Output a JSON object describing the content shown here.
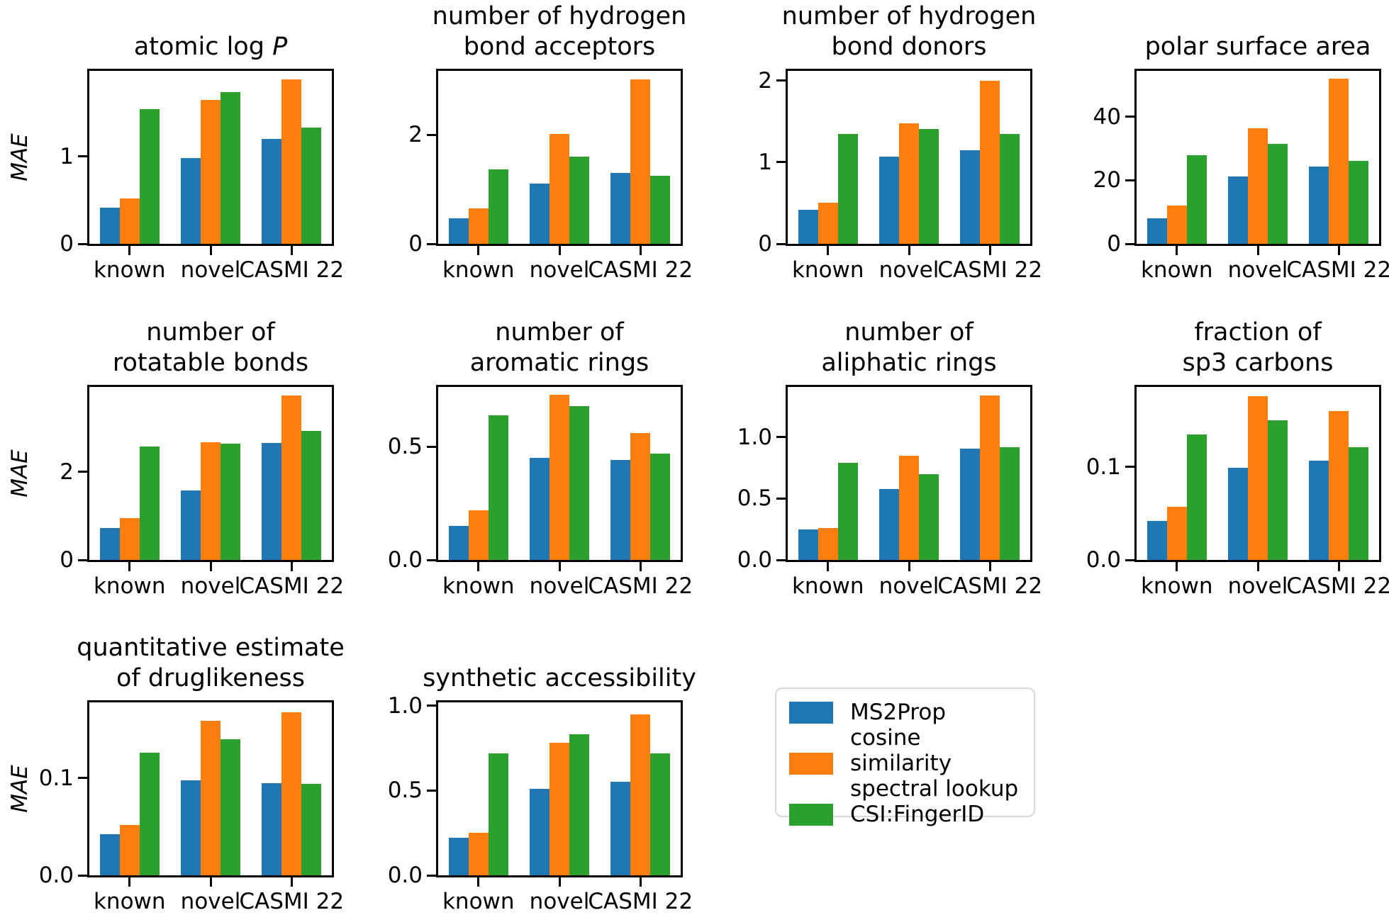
{
  "chart_data": {
    "type": "bar",
    "figure_ylabel": "MAE",
    "groups": [
      "known",
      "novel",
      "CASMI 22"
    ],
    "series_names": [
      "MS2Prop",
      "cosine similarity spectral lookup",
      "CSI:FingerID"
    ],
    "series_colors": [
      "#1f77b4",
      "#ff7f0e",
      "#2ca02c"
    ],
    "grid": false,
    "charts": [
      {
        "slug": "atomic-logp",
        "title_lines": [
          "atomic log"
        ],
        "title_italic_suffix": "P",
        "show_ylabel": true,
        "ymax": 1.98,
        "yticks": [
          {
            "v": 0,
            "label": "0"
          },
          {
            "v": 1,
            "label": "1"
          }
        ],
        "series": [
          [
            0.41,
            0.98,
            1.2
          ],
          [
            0.52,
            1.65,
            1.88
          ],
          [
            1.54,
            1.74,
            1.33
          ]
        ]
      },
      {
        "slug": "h-bond-acceptors",
        "title_lines": [
          "number of hydrogen",
          "bond acceptors"
        ],
        "title_italic_suffix": "",
        "show_ylabel": false,
        "ymax": 3.17,
        "yticks": [
          {
            "v": 0,
            "label": "0"
          },
          {
            "v": 2,
            "label": "2"
          }
        ],
        "series": [
          [
            0.47,
            1.1,
            1.3
          ],
          [
            0.65,
            2.01,
            3.01
          ],
          [
            1.37,
            1.6,
            1.25
          ]
        ]
      },
      {
        "slug": "h-bond-donors",
        "title_lines": [
          "number of hydrogen",
          "bond donors"
        ],
        "title_italic_suffix": "",
        "show_ylabel": false,
        "ymax": 2.12,
        "yticks": [
          {
            "v": 0,
            "label": "0"
          },
          {
            "v": 1,
            "label": "1"
          },
          {
            "v": 2,
            "label": "2"
          }
        ],
        "series": [
          [
            0.42,
            1.07,
            1.15
          ],
          [
            0.5,
            1.48,
            2.0
          ],
          [
            1.35,
            1.41,
            1.35
          ]
        ]
      },
      {
        "slug": "polar-surface-area",
        "title_lines": [
          "polar surface area"
        ],
        "title_italic_suffix": "",
        "show_ylabel": false,
        "ymax": 54.5,
        "yticks": [
          {
            "v": 0,
            "label": "0"
          },
          {
            "v": 20,
            "label": "20"
          },
          {
            "v": 40,
            "label": "40"
          }
        ],
        "series": [
          [
            8.0,
            21.2,
            24.3
          ],
          [
            12.1,
            36.3,
            52.1
          ],
          [
            27.9,
            31.5,
            26.2
          ]
        ]
      },
      {
        "slug": "rotatable-bonds",
        "title_lines": [
          "number of",
          "rotatable bonds"
        ],
        "title_italic_suffix": "",
        "show_ylabel": true,
        "ymax": 3.93,
        "yticks": [
          {
            "v": 0,
            "label": "0"
          },
          {
            "v": 2,
            "label": "2"
          }
        ],
        "series": [
          [
            0.72,
            1.58,
            2.66
          ],
          [
            0.95,
            2.68,
            3.74
          ],
          [
            2.58,
            2.64,
            2.93
          ]
        ]
      },
      {
        "slug": "aromatic-rings",
        "title_lines": [
          "number of",
          "aromatic rings"
        ],
        "title_italic_suffix": "",
        "show_ylabel": false,
        "ymax": 0.764,
        "yticks": [
          {
            "v": 0,
            "label": "0.0"
          },
          {
            "v": 0.5,
            "label": "0.5"
          }
        ],
        "series": [
          [
            0.15,
            0.45,
            0.44
          ],
          [
            0.22,
            0.73,
            0.56
          ],
          [
            0.64,
            0.68,
            0.47
          ]
        ]
      },
      {
        "slug": "aliphatic-rings",
        "title_lines": [
          "number of",
          "aliphatic rings"
        ],
        "title_italic_suffix": "",
        "show_ylabel": false,
        "ymax": 1.41,
        "yticks": [
          {
            "v": 0,
            "label": "0.0"
          },
          {
            "v": 0.5,
            "label": "0.5"
          },
          {
            "v": 1,
            "label": "1.0"
          }
        ],
        "series": [
          [
            0.25,
            0.58,
            0.91
          ],
          [
            0.26,
            0.85,
            1.34
          ],
          [
            0.79,
            0.7,
            0.92
          ]
        ]
      },
      {
        "slug": "sp3-carbons",
        "title_lines": [
          "fraction of",
          "sp3 carbons"
        ],
        "title_italic_suffix": "",
        "show_ylabel": false,
        "ymax": 0.186,
        "yticks": [
          {
            "v": 0,
            "label": "0.0"
          },
          {
            "v": 0.1,
            "label": "0.1"
          }
        ],
        "series": [
          [
            0.042,
            0.099,
            0.107
          ],
          [
            0.057,
            0.176,
            0.16
          ],
          [
            0.135,
            0.15,
            0.121
          ]
        ]
      },
      {
        "slug": "qed",
        "title_lines": [
          "quantitative estimate",
          "of druglikeness"
        ],
        "title_italic_suffix": "",
        "show_ylabel": true,
        "ymax": 0.178,
        "yticks": [
          {
            "v": 0,
            "label": "0.0"
          },
          {
            "v": 0.1,
            "label": "0.1"
          }
        ],
        "series": [
          [
            0.042,
            0.098,
            0.095
          ],
          [
            0.052,
            0.159,
            0.168
          ],
          [
            0.126,
            0.14,
            0.094
          ]
        ]
      },
      {
        "slug": "synthetic-accessibility",
        "title_lines": [
          "synthetic accessibility"
        ],
        "title_italic_suffix": "",
        "show_ylabel": false,
        "ymax": 1.02,
        "yticks": [
          {
            "v": 0,
            "label": "0.0"
          },
          {
            "v": 0.5,
            "label": "0.5"
          },
          {
            "v": 1,
            "label": "1.0"
          }
        ],
        "series": [
          [
            0.22,
            0.51,
            0.55
          ],
          [
            0.25,
            0.78,
            0.95
          ],
          [
            0.72,
            0.83,
            0.72
          ]
        ]
      }
    ]
  },
  "legend": {
    "items": [
      {
        "label": "MS2Prop",
        "color": "#1f77b4"
      },
      {
        "label": "cosine similarity\nspectral lookup",
        "color": "#ff7f0e"
      },
      {
        "label": "CSI:FingerID",
        "color": "#2ca02c"
      }
    ]
  }
}
